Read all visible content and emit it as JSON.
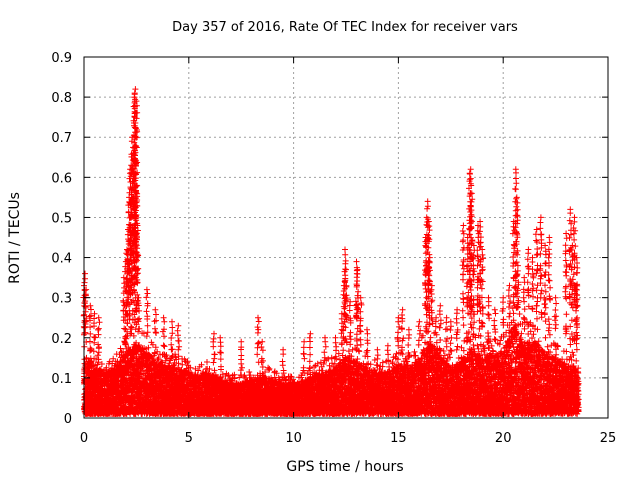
{
  "chart_data": {
    "type": "scatter",
    "title": "Day 357 of 2016, Rate Of TEC Index for receiver vars",
    "xlabel": "GPS time / hours",
    "ylabel": "ROTI / TECUs",
    "xlim": [
      0,
      25
    ],
    "ylim": [
      0,
      0.9
    ],
    "xticks": [
      "0",
      "5",
      "10",
      "15",
      "20",
      "25"
    ],
    "yticks": [
      "0",
      "0.1",
      "0.2",
      "0.3",
      "0.4",
      "0.5",
      "0.6",
      "0.7",
      "0.8",
      "0.9"
    ],
    "grid": true,
    "marker": "+",
    "color": "#ff0000",
    "baseline": [
      [
        0.0,
        0.16
      ],
      [
        0.5,
        0.14
      ],
      [
        1.0,
        0.12
      ],
      [
        1.5,
        0.13
      ],
      [
        2.0,
        0.17
      ],
      [
        2.5,
        0.2
      ],
      [
        3.0,
        0.17
      ],
      [
        3.5,
        0.15
      ],
      [
        4.0,
        0.14
      ],
      [
        4.5,
        0.13
      ],
      [
        5.0,
        0.12
      ],
      [
        5.5,
        0.11
      ],
      [
        6.0,
        0.12
      ],
      [
        6.5,
        0.1
      ],
      [
        7.0,
        0.09
      ],
      [
        7.5,
        0.09
      ],
      [
        8.0,
        0.1
      ],
      [
        8.5,
        0.11
      ],
      [
        9.0,
        0.1
      ],
      [
        9.5,
        0.09
      ],
      [
        10.0,
        0.09
      ],
      [
        10.5,
        0.1
      ],
      [
        11.0,
        0.11
      ],
      [
        11.5,
        0.12
      ],
      [
        12.0,
        0.13
      ],
      [
        12.5,
        0.16
      ],
      [
        13.0,
        0.15
      ],
      [
        13.5,
        0.13
      ],
      [
        14.0,
        0.12
      ],
      [
        14.5,
        0.12
      ],
      [
        15.0,
        0.14
      ],
      [
        15.5,
        0.13
      ],
      [
        16.0,
        0.16
      ],
      [
        16.5,
        0.2
      ],
      [
        17.0,
        0.16
      ],
      [
        17.5,
        0.13
      ],
      [
        18.0,
        0.15
      ],
      [
        18.5,
        0.18
      ],
      [
        19.0,
        0.16
      ],
      [
        19.5,
        0.17
      ],
      [
        20.0,
        0.18
      ],
      [
        20.5,
        0.24
      ],
      [
        21.0,
        0.2
      ],
      [
        21.5,
        0.2
      ],
      [
        22.0,
        0.17
      ],
      [
        22.5,
        0.16
      ],
      [
        23.0,
        0.14
      ],
      [
        23.5,
        0.13
      ],
      [
        23.6,
        0.12
      ]
    ],
    "spikes": [
      [
        0.0,
        0.33
      ],
      [
        0.05,
        0.36
      ],
      [
        0.1,
        0.32
      ],
      [
        0.3,
        0.28
      ],
      [
        0.5,
        0.26
      ],
      [
        0.7,
        0.25
      ],
      [
        1.9,
        0.35
      ],
      [
        2.0,
        0.39
      ],
      [
        2.05,
        0.42
      ],
      [
        2.1,
        0.47
      ],
      [
        2.15,
        0.55
      ],
      [
        2.2,
        0.62
      ],
      [
        2.25,
        0.63
      ],
      [
        2.3,
        0.7
      ],
      [
        2.35,
        0.66
      ],
      [
        2.4,
        0.8
      ],
      [
        2.42,
        0.81
      ],
      [
        2.45,
        0.82
      ],
      [
        2.5,
        0.79
      ],
      [
        2.5,
        0.58
      ],
      [
        2.55,
        0.48
      ],
      [
        2.6,
        0.3
      ],
      [
        3.0,
        0.32
      ],
      [
        3.4,
        0.27
      ],
      [
        3.8,
        0.25
      ],
      [
        4.2,
        0.24
      ],
      [
        4.5,
        0.23
      ],
      [
        6.2,
        0.21
      ],
      [
        6.5,
        0.2
      ],
      [
        7.5,
        0.19
      ],
      [
        8.3,
        0.25
      ],
      [
        8.5,
        0.19
      ],
      [
        9.5,
        0.17
      ],
      [
        10.5,
        0.19
      ],
      [
        10.8,
        0.21
      ],
      [
        11.5,
        0.2
      ],
      [
        12.0,
        0.2
      ],
      [
        12.3,
        0.26
      ],
      [
        12.4,
        0.33
      ],
      [
        12.5,
        0.37
      ],
      [
        12.45,
        0.42
      ],
      [
        12.7,
        0.29
      ],
      [
        13.0,
        0.39
      ],
      [
        13.05,
        0.37
      ],
      [
        13.2,
        0.3
      ],
      [
        13.5,
        0.22
      ],
      [
        14.0,
        0.17
      ],
      [
        14.5,
        0.18
      ],
      [
        15.0,
        0.25
      ],
      [
        15.2,
        0.27
      ],
      [
        15.5,
        0.22
      ],
      [
        16.0,
        0.24
      ],
      [
        16.3,
        0.45
      ],
      [
        16.35,
        0.5
      ],
      [
        16.4,
        0.54
      ],
      [
        16.45,
        0.49
      ],
      [
        16.5,
        0.4
      ],
      [
        16.6,
        0.33
      ],
      [
        16.8,
        0.25
      ],
      [
        17.0,
        0.28
      ],
      [
        17.3,
        0.25
      ],
      [
        17.5,
        0.24
      ],
      [
        17.8,
        0.27
      ],
      [
        18.1,
        0.48
      ],
      [
        18.3,
        0.45
      ],
      [
        18.4,
        0.61
      ],
      [
        18.45,
        0.62
      ],
      [
        18.5,
        0.56
      ],
      [
        18.6,
        0.43
      ],
      [
        18.8,
        0.48
      ],
      [
        18.9,
        0.49
      ],
      [
        19.0,
        0.42
      ],
      [
        19.3,
        0.3
      ],
      [
        19.6,
        0.27
      ],
      [
        20.0,
        0.3
      ],
      [
        20.3,
        0.33
      ],
      [
        20.5,
        0.49
      ],
      [
        20.6,
        0.62
      ],
      [
        20.65,
        0.55
      ],
      [
        20.7,
        0.38
      ],
      [
        21.0,
        0.35
      ],
      [
        21.2,
        0.42
      ],
      [
        21.4,
        0.4
      ],
      [
        21.6,
        0.47
      ],
      [
        21.8,
        0.5
      ],
      [
        22.0,
        0.43
      ],
      [
        22.2,
        0.45
      ],
      [
        22.5,
        0.3
      ],
      [
        23.0,
        0.46
      ],
      [
        23.2,
        0.52
      ],
      [
        23.3,
        0.43
      ],
      [
        23.4,
        0.5
      ],
      [
        23.5,
        0.4
      ],
      [
        23.5,
        0.33
      ]
    ]
  }
}
